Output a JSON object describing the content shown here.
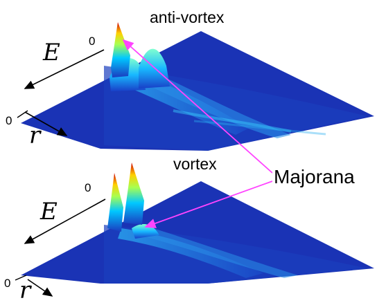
{
  "top_panel": {
    "title": "anti-vortex",
    "zero_e": "0",
    "zero_r": "0",
    "e_label": "E",
    "r_label": "r"
  },
  "bottom_panel": {
    "title": "vortex",
    "zero_e": "0",
    "zero_r": "0",
    "e_label": "E",
    "r_label": "r"
  },
  "annotation": {
    "text": "Majorana",
    "arrow_color": "#ff44ff"
  },
  "colors": {
    "surface_base": "#1530b8",
    "peak_top": "#d80000",
    "mid": "#ffe000",
    "arrow": "#000000"
  }
}
